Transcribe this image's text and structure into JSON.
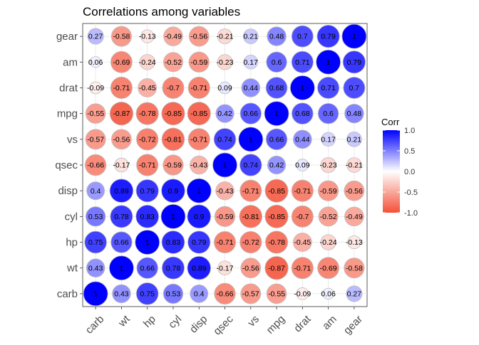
{
  "chart_data": {
    "type": "heatmap",
    "title": "Correlations among variables",
    "variables": [
      "carb",
      "wt",
      "hp",
      "cyl",
      "disp",
      "qsec",
      "vs",
      "mpg",
      "drat",
      "am",
      "gear"
    ],
    "x_tick_labels": [
      "carb",
      "wt",
      "hp",
      "cyl",
      "disp",
      "qsec",
      "vs",
      "mpg",
      "drat",
      "am",
      "gear"
    ],
    "y_tick_labels": [
      "gear",
      "am",
      "drat",
      "mpg",
      "vs",
      "qsec",
      "disp",
      "cyl",
      "hp",
      "wt",
      "carb"
    ],
    "matrix": [
      [
        1,
        0.43,
        0.75,
        0.53,
        0.4,
        -0.66,
        -0.57,
        -0.55,
        -0.09,
        0.06,
        0.27
      ],
      [
        0.43,
        1,
        0.66,
        0.78,
        0.89,
        -0.17,
        -0.56,
        -0.87,
        -0.71,
        -0.69,
        -0.58
      ],
      [
        0.75,
        0.66,
        1,
        0.83,
        0.79,
        -0.71,
        -0.72,
        -0.78,
        -0.45,
        -0.24,
        -0.13
      ],
      [
        0.53,
        0.78,
        0.83,
        1,
        0.9,
        -0.59,
        -0.81,
        -0.85,
        -0.7,
        -0.52,
        -0.49
      ],
      [
        0.4,
        0.89,
        0.79,
        0.9,
        1,
        -0.43,
        -0.71,
        -0.85,
        -0.71,
        -0.59,
        -0.56
      ],
      [
        -0.66,
        -0.17,
        -0.71,
        -0.59,
        -0.43,
        1,
        0.74,
        0.42,
        0.09,
        -0.23,
        -0.21
      ],
      [
        -0.57,
        -0.56,
        -0.72,
        -0.81,
        -0.71,
        0.74,
        1,
        0.66,
        0.44,
        0.17,
        0.21
      ],
      [
        -0.55,
        -0.87,
        -0.78,
        -0.85,
        -0.85,
        0.42,
        0.66,
        1,
        0.68,
        0.6,
        0.48
      ],
      [
        -0.09,
        -0.71,
        -0.45,
        -0.7,
        -0.71,
        0.09,
        0.44,
        0.68,
        1,
        0.71,
        0.7
      ],
      [
        0.06,
        -0.69,
        -0.24,
        -0.52,
        -0.59,
        -0.23,
        0.17,
        0.6,
        0.71,
        1,
        0.79
      ],
      [
        0.27,
        -0.58,
        -0.13,
        -0.49,
        -0.56,
        -0.21,
        0.21,
        0.48,
        0.7,
        0.79,
        1
      ]
    ],
    "legend": {
      "title": "Corr",
      "ticks": [
        {
          "value": 1.0,
          "label": "1.0"
        },
        {
          "value": 0.5,
          "label": "0.5"
        },
        {
          "value": 0.0,
          "label": "0.0"
        },
        {
          "value": -0.5,
          "label": "-0.5"
        },
        {
          "value": -1.0,
          "label": "-1.0"
        }
      ],
      "placement": "right"
    },
    "colors": {
      "low": "#E46726",
      "mid": "#FFFFFF",
      "high": "#6D9EC1"
    },
    "color_scale": {
      "negative": "#F44F36",
      "zero": "#FFFFFF",
      "positive": "#0000FF"
    },
    "grid": true,
    "marker": "circle-sized-by-abs-corr"
  }
}
